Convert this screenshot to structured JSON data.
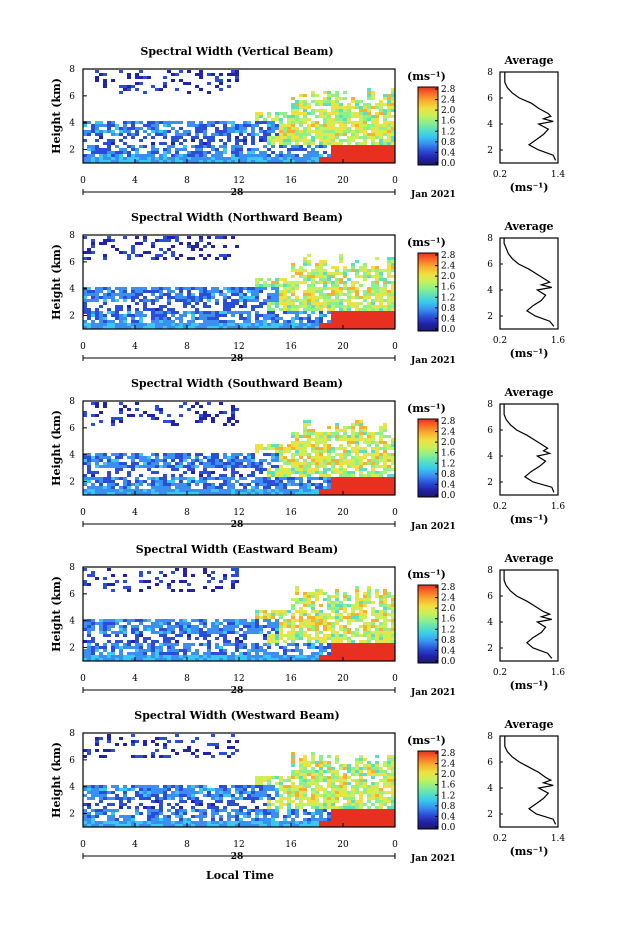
{
  "figure": {
    "xlabel": "Local Time"
  },
  "colorbar": {
    "unit_label": "(ms⁻¹)",
    "tick_labels": [
      "0.0",
      "0.4",
      "0.8",
      "1.2",
      "1.6",
      "2.0",
      "2.4",
      "2.8"
    ],
    "colors": [
      "#1a1a66",
      "#2222aa",
      "#2a4fd6",
      "#3a8ff0",
      "#38c8f0",
      "#5ae0c0",
      "#8ef08a",
      "#c8f05a",
      "#f0e040",
      "#f8b030",
      "#f87028",
      "#e83020"
    ]
  },
  "chart_data": [
    {
      "type": "heatmap",
      "title": "Spectral Width (Vertical Beam)",
      "ylabel": "Height (km)",
      "x_ticks": [
        "0",
        "4",
        "8",
        "12",
        "16",
        "20",
        "0"
      ],
      "date_day": "28",
      "date_month": "Jan 2021",
      "y_ticks": [
        "2",
        "4",
        "6",
        "8"
      ],
      "xlim": [
        0,
        24
      ],
      "ylim": [
        1,
        8
      ],
      "profile": {
        "title": "Average",
        "xlabel": "(ms⁻¹)",
        "x_ticks": [
          "0.2",
          "1.4"
        ],
        "xlim": [
          0.2,
          1.4
        ],
        "y_ticks": [
          "2",
          "4",
          "6",
          "8"
        ],
        "heights": [
          1.2,
          1.6,
          2.0,
          2.4,
          2.8,
          3.2,
          3.6,
          4.0,
          4.2,
          4.4,
          4.6,
          4.8,
          5.2,
          5.6,
          6.0,
          6.4,
          6.8,
          7.2,
          7.6,
          8.0
        ],
        "values": [
          1.35,
          1.3,
          1.0,
          0.8,
          0.95,
          1.1,
          1.2,
          1.0,
          1.3,
          1.1,
          1.25,
          1.2,
          1.0,
          0.85,
          0.6,
          0.45,
          0.35,
          0.3,
          0.3,
          0.3
        ]
      }
    },
    {
      "type": "heatmap",
      "title": "Spectral Width (Northward Beam)",
      "ylabel": "Height (km)",
      "x_ticks": [
        "0",
        "4",
        "8",
        "12",
        "16",
        "20",
        "0"
      ],
      "date_day": "28",
      "date_month": "Jan 2021",
      "y_ticks": [
        "2",
        "4",
        "6",
        "8"
      ],
      "xlim": [
        0,
        24
      ],
      "ylim": [
        1,
        8
      ],
      "profile": {
        "title": "Average",
        "xlabel": "(ms⁻¹)",
        "x_ticks": [
          "0.2",
          "1.6"
        ],
        "xlim": [
          0.2,
          1.6
        ],
        "y_ticks": [
          "2",
          "4",
          "6",
          "8"
        ],
        "heights": [
          1.2,
          1.6,
          2.0,
          2.4,
          2.8,
          3.2,
          3.6,
          4.0,
          4.2,
          4.4,
          4.6,
          4.8,
          5.2,
          5.6,
          6.0,
          6.4,
          6.8,
          7.2,
          7.6,
          8.0
        ],
        "values": [
          1.5,
          1.4,
          1.05,
          0.85,
          1.0,
          1.2,
          1.3,
          1.1,
          1.45,
          1.2,
          1.4,
          1.3,
          1.1,
          0.9,
          0.65,
          0.5,
          0.4,
          0.35,
          0.3,
          0.3
        ]
      }
    },
    {
      "type": "heatmap",
      "title": "Spectral Width (Southward Beam)",
      "ylabel": "Height (km)",
      "x_ticks": [
        "0",
        "4",
        "8",
        "12",
        "16",
        "20",
        "0"
      ],
      "date_day": "28",
      "date_month": "Jan 2021",
      "y_ticks": [
        "2",
        "4",
        "6",
        "8"
      ],
      "xlim": [
        0,
        24
      ],
      "ylim": [
        1,
        8
      ],
      "profile": {
        "title": "Average",
        "xlabel": "(ms⁻¹)",
        "x_ticks": [
          "0.2",
          "1.6"
        ],
        "xlim": [
          0.2,
          1.6
        ],
        "y_ticks": [
          "2",
          "4",
          "6",
          "8"
        ],
        "heights": [
          1.2,
          1.6,
          2.0,
          2.4,
          2.8,
          3.2,
          3.6,
          4.0,
          4.2,
          4.4,
          4.6,
          4.8,
          5.2,
          5.6,
          6.0,
          6.4,
          6.8,
          7.2,
          7.6,
          8.0
        ],
        "values": [
          1.5,
          1.45,
          1.0,
          0.8,
          0.95,
          1.15,
          1.3,
          1.1,
          1.4,
          1.25,
          1.35,
          1.25,
          1.05,
          0.85,
          0.6,
          0.45,
          0.35,
          0.3,
          0.3,
          0.3
        ]
      }
    },
    {
      "type": "heatmap",
      "title": "Spectral Width (Eastward Beam)",
      "ylabel": "Height (km)",
      "x_ticks": [
        "0",
        "4",
        "8",
        "12",
        "16",
        "20",
        "0"
      ],
      "date_day": "28",
      "date_month": "Jan 2021",
      "y_ticks": [
        "2",
        "4",
        "6",
        "8"
      ],
      "xlim": [
        0,
        24
      ],
      "ylim": [
        1,
        8
      ],
      "profile": {
        "title": "Average",
        "xlabel": "(ms⁻¹)",
        "x_ticks": [
          "0.2",
          "1.6"
        ],
        "xlim": [
          0.2,
          1.6
        ],
        "y_ticks": [
          "2",
          "4",
          "6",
          "8"
        ],
        "heights": [
          1.2,
          1.6,
          2.0,
          2.4,
          2.8,
          3.2,
          3.6,
          4.0,
          4.2,
          4.4,
          4.6,
          4.8,
          5.2,
          5.6,
          6.0,
          6.4,
          6.8,
          7.2,
          7.6,
          8.0
        ],
        "values": [
          1.45,
          1.35,
          1.0,
          0.85,
          1.0,
          1.2,
          1.3,
          1.1,
          1.45,
          1.2,
          1.4,
          1.25,
          1.05,
          0.85,
          0.6,
          0.45,
          0.35,
          0.3,
          0.3,
          0.3
        ]
      }
    },
    {
      "type": "heatmap",
      "title": "Spectral Width (Westward Beam)",
      "ylabel": "Height (km)",
      "x_ticks": [
        "0",
        "4",
        "8",
        "12",
        "16",
        "20",
        "0"
      ],
      "date_day": "28",
      "date_month": "Jan 2021",
      "y_ticks": [
        "2",
        "4",
        "6",
        "8"
      ],
      "xlim": [
        0,
        24
      ],
      "ylim": [
        1,
        8
      ],
      "profile": {
        "title": "Average",
        "xlabel": "(ms⁻¹)",
        "x_ticks": [
          "0.2",
          "1.4"
        ],
        "xlim": [
          0.2,
          1.4
        ],
        "y_ticks": [
          "2",
          "4",
          "6",
          "8"
        ],
        "heights": [
          1.2,
          1.6,
          2.0,
          2.4,
          2.8,
          3.2,
          3.6,
          4.0,
          4.2,
          4.4,
          4.6,
          4.8,
          5.2,
          5.6,
          6.0,
          6.4,
          6.8,
          7.2,
          7.6,
          8.0
        ],
        "values": [
          1.35,
          1.3,
          0.95,
          0.8,
          0.95,
          1.1,
          1.2,
          1.0,
          1.3,
          1.1,
          1.25,
          1.15,
          1.0,
          0.8,
          0.6,
          0.45,
          0.35,
          0.3,
          0.3,
          0.3
        ]
      }
    }
  ]
}
